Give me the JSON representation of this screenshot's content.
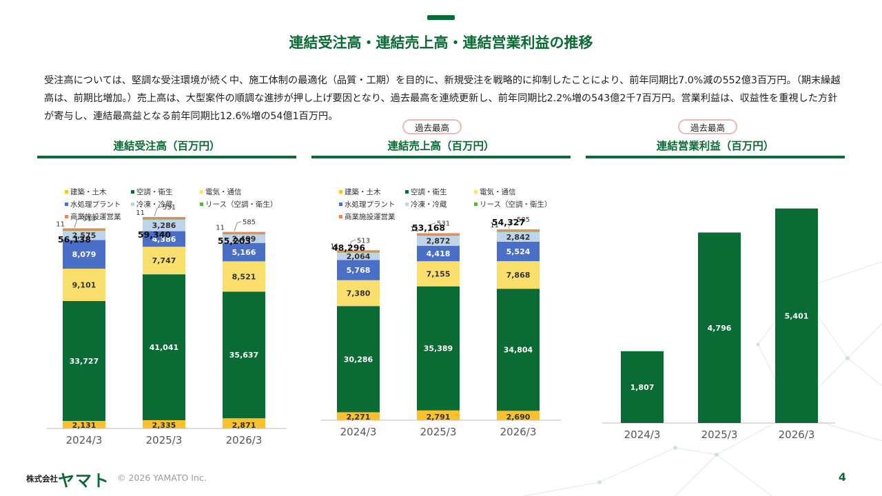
{
  "title": "連結受注高・連結売上高・連結営業利益の推移",
  "description": "受注高については、堅調な受注環境が続く中、施工体制の最適化（品質・工期）を目的に、新規受注を戦略的に抑制したことにより、前年同期比7.0%減の552億3百万円。（期末繰越高は、前期比増加。）売上高は、大型案件の順調な進捗が押し上げ要因となり、過去最高を連続更新し、前年同期比2.2%増の543億2千7百万円。営業利益は、収益性を重視した方針が寄与し、連結最高益となる前年同期比12.6%増の54億1百万円。",
  "badge_text": "過去最高",
  "footer": {
    "logo_small": "株式会社",
    "logo_big": "ヤマト",
    "copyright": "© 2026 YAMATO Inc.",
    "page": "4"
  },
  "colors": {
    "green": "#0b6b35",
    "建築・土木": "#fbc02d",
    "空調・衛生": "#0b6b35",
    "電気・通信": "#fbdf6c",
    "水処理プラント": "#4a6fc6",
    "冷凍・冷蔵": "#bfd3ea",
    "リース（空調・衛生）": "#62b04a",
    "商業施設運営業": "#e88a57"
  },
  "chart_data": [
    {
      "type": "bar",
      "stacked": true,
      "title": "連結受注高（百万円）",
      "categories": [
        "2024/3",
        "2025/3",
        "2026/3"
      ],
      "legend": [
        "建築・土木",
        "空調・衛生",
        "電気・通信",
        "水処理プラント",
        "冷凍・冷蔵",
        "リース（空調・衛生）",
        "商業施設運営業"
      ],
      "series": [
        {
          "name": "建築・土木",
          "values": [
            2131,
            2335,
            2871
          ]
        },
        {
          "name": "空調・衛生",
          "values": [
            33727,
            41041,
            35637
          ]
        },
        {
          "name": "電気・通信",
          "values": [
            9101,
            7747,
            8521
          ]
        },
        {
          "name": "水処理プラント",
          "values": [
            8079,
            4386,
            5166
          ]
        },
        {
          "name": "冷凍・冷蔵",
          "values": [
            2575,
            3286,
            2409
          ]
        },
        {
          "name": "リース（空調・衛生）",
          "values": [
            11,
            11,
            11
          ]
        },
        {
          "name": "商業施設運営業",
          "values": [
            513,
            531,
            585
          ]
        }
      ],
      "totals": [
        56138,
        59340,
        55203
      ]
    },
    {
      "type": "bar",
      "stacked": true,
      "title": "連結売上高（百万円）",
      "categories": [
        "2024/3",
        "2025/3",
        "2026/3"
      ],
      "legend": [
        "建築・土木",
        "空調・衛生",
        "電気・通信",
        "水処理プラント",
        "冷凍・冷蔵",
        "リース（空調・衛生）",
        "商業施設運営業"
      ],
      "series": [
        {
          "name": "建築・土木",
          "values": [
            2271,
            2791,
            2690
          ]
        },
        {
          "name": "空調・衛生",
          "values": [
            30286,
            35389,
            34804
          ]
        },
        {
          "name": "電気・通信",
          "values": [
            7380,
            7155,
            7868
          ]
        },
        {
          "name": "水処理プラント",
          "values": [
            5768,
            4418,
            5524
          ]
        },
        {
          "name": "冷凍・冷蔵",
          "values": [
            2064,
            2872,
            2842
          ]
        },
        {
          "name": "リース（空調・衛生）",
          "values": [
            11,
            11,
            11
          ]
        },
        {
          "name": "商業施設運営業",
          "values": [
            513,
            531,
            585
          ]
        }
      ],
      "totals": [
        48296,
        53168,
        54327
      ]
    },
    {
      "type": "bar",
      "stacked": false,
      "title": "連結営業利益（百万円）",
      "categories": [
        "2024/3",
        "2025/3",
        "2026/3"
      ],
      "values": [
        1807,
        4796,
        5401
      ]
    }
  ]
}
